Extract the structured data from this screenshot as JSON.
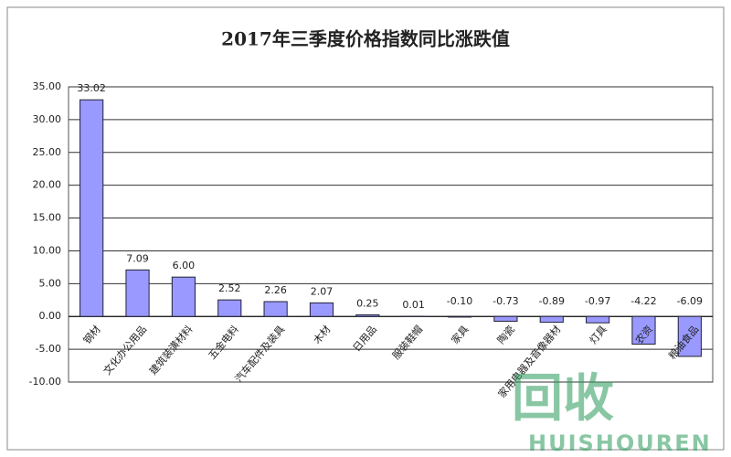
{
  "chart_data": {
    "type": "bar",
    "title": "2017年三季度价格指数同比涨跌值",
    "categories": [
      "钢材",
      "文化办公用品",
      "建筑装潢材料",
      "五金电料",
      "汽车配件及装具",
      "木材",
      "日用品",
      "服装鞋帽",
      "家具",
      "陶瓷",
      "家用电器及音像器材",
      "灯具",
      "农资",
      "粮油食品"
    ],
    "values": [
      33.02,
      7.09,
      6.0,
      2.52,
      2.26,
      2.07,
      0.25,
      0.01,
      -0.1,
      -0.73,
      -0.89,
      -0.97,
      -4.22,
      -6.09
    ],
    "value_labels": [
      "33.02",
      "7.09",
      "6.00",
      "2.52",
      "2.26",
      "2.07",
      "0.25",
      "0.01",
      "-0.10",
      "-0.73",
      "-0.89",
      "-0.97",
      "-4.22",
      "-6.09"
    ],
    "color": "#9999ff",
    "ylim": [
      -10,
      35
    ],
    "yticks": [
      {
        "value": -10,
        "label": "-10.00"
      },
      {
        "value": -5,
        "label": "-5.00"
      },
      {
        "value": 0,
        "label": "0.00"
      },
      {
        "value": 5,
        "label": "5.00"
      },
      {
        "value": 10,
        "label": "10.00"
      },
      {
        "value": 15,
        "label": "15.00"
      },
      {
        "value": 20,
        "label": "20.00"
      },
      {
        "value": 25,
        "label": "25.00"
      },
      {
        "value": 30,
        "label": "30.00"
      },
      {
        "value": 35,
        "label": "35.00"
      }
    ],
    "grid": true
  },
  "watermark": {
    "logo": "回收",
    "brand": "HUISHOUREN"
  }
}
